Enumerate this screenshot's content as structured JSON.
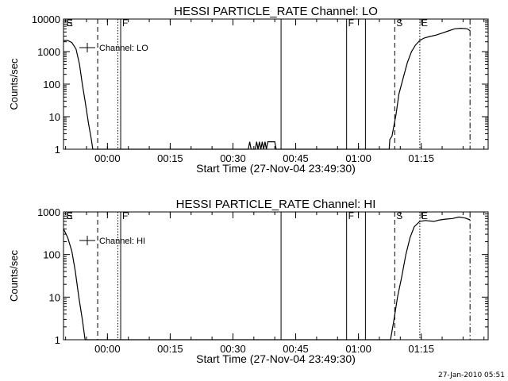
{
  "footer_timestamp": "27-Jan-2010 05:51",
  "chart_data": [
    {
      "type": "line",
      "title": "HESSI PARTICLE_RATE Channel: LO",
      "xlabel": "Start Time (27-Nov-04 23:49:30)",
      "ylabel": "Counts/sec",
      "y_scale": "log",
      "ylim": [
        1,
        10000
      ],
      "xlim": [
        "23:49:30",
        "01:31:00"
      ],
      "y_ticks": [
        {
          "v": 1,
          "label": "1"
        },
        {
          "v": 10,
          "label": "10"
        },
        {
          "v": 100,
          "label": "100"
        },
        {
          "v": 1000,
          "label": "1000"
        },
        {
          "v": 10000,
          "label": "10000"
        }
      ],
      "x_ticks": [
        {
          "t": "00:00",
          "label": "00:00"
        },
        {
          "t": "00:15",
          "label": "00:15"
        },
        {
          "t": "00:30",
          "label": "00:30"
        },
        {
          "t": "00:45",
          "label": "00:45"
        },
        {
          "t": "01:00",
          "label": "01:00"
        },
        {
          "t": "01:15",
          "label": "01:15"
        }
      ],
      "legend": {
        "entry": "Channel: LO",
        "placement": "top-left"
      },
      "markers": [
        {
          "t": "23:49:45",
          "style": "none",
          "label": "S"
        },
        {
          "t": "23:49:50",
          "style": "none",
          "label": "E"
        },
        {
          "t": "23:57:40",
          "style": "dashed",
          "label": ""
        },
        {
          "t": "00:02:30",
          "style": "dotted",
          "label": ""
        },
        {
          "t": "00:03:10",
          "style": "solid",
          "label": "F"
        },
        {
          "t": "00:41:30",
          "style": "solid",
          "label": ""
        },
        {
          "t": "00:57:10",
          "style": "solid",
          "label": "F"
        },
        {
          "t": "01:01:40",
          "style": "solid",
          "label": ""
        },
        {
          "t": "01:08:40",
          "style": "dashed",
          "label": "S"
        },
        {
          "t": "01:14:40",
          "style": "dotted",
          "label": "E"
        },
        {
          "t": "01:26:40",
          "style": "dashdot",
          "label": ""
        }
      ],
      "series": [
        {
          "points": [
            [
              "23:49:30",
              2200
            ],
            [
              "23:50:30",
              2200
            ],
            [
              "23:51:30",
              1900
            ],
            [
              "23:52:30",
              1200
            ],
            [
              "23:53:20",
              400
            ],
            [
              "23:54:00",
              100
            ],
            [
              "23:54:40",
              30
            ],
            [
              "23:55:30",
              6
            ],
            [
              "23:56:10",
              2
            ],
            [
              "23:56:30",
              1
            ],
            [
              "00:33:40",
              1
            ],
            [
              "00:34:00",
              1.7
            ],
            [
              "00:34:20",
              1
            ],
            [
              "00:35:20",
              1
            ],
            [
              "00:35:40",
              1.7
            ],
            [
              "00:36:00",
              1
            ],
            [
              "00:36:20",
              1.7
            ],
            [
              "00:36:40",
              1
            ],
            [
              "00:37:00",
              1.7
            ],
            [
              "00:37:20",
              1
            ],
            [
              "00:37:40",
              1.7
            ],
            [
              "00:38:00",
              1
            ],
            [
              "00:38:20",
              1.7
            ],
            [
              "00:40:00",
              1.7
            ],
            [
              "00:40:20",
              1
            ],
            [
              "01:07:20",
              1
            ],
            [
              "01:07:30",
              2
            ],
            [
              "01:08:00",
              2.5
            ],
            [
              "01:09:00",
              12
            ],
            [
              "01:09:40",
              50
            ],
            [
              "01:10:40",
              150
            ],
            [
              "01:11:40",
              450
            ],
            [
              "01:12:40",
              1000
            ],
            [
              "01:13:40",
              1600
            ],
            [
              "01:14:40",
              2200
            ],
            [
              "01:15:40",
              2600
            ],
            [
              "01:17:00",
              2900
            ],
            [
              "01:18:30",
              3200
            ],
            [
              "01:20:00",
              3700
            ],
            [
              "01:21:30",
              4300
            ],
            [
              "01:23:00",
              5000
            ],
            [
              "01:24:30",
              5200
            ],
            [
              "01:26:00",
              5000
            ],
            [
              "01:26:40",
              4400
            ]
          ]
        }
      ]
    },
    {
      "type": "line",
      "title": "HESSI PARTICLE_RATE Channel: HI",
      "xlabel": "Start Time (27-Nov-04 23:49:30)",
      "ylabel": "Counts/sec",
      "y_scale": "log",
      "ylim": [
        1,
        1000
      ],
      "xlim": [
        "23:49:30",
        "01:31:00"
      ],
      "y_ticks": [
        {
          "v": 1,
          "label": "1"
        },
        {
          "v": 10,
          "label": "10"
        },
        {
          "v": 100,
          "label": "100"
        },
        {
          "v": 1000,
          "label": "1000"
        }
      ],
      "x_ticks": [
        {
          "t": "00:00",
          "label": "00:00"
        },
        {
          "t": "00:15",
          "label": "00:15"
        },
        {
          "t": "00:30",
          "label": "00:30"
        },
        {
          "t": "00:45",
          "label": "00:45"
        },
        {
          "t": "01:00",
          "label": "01:00"
        },
        {
          "t": "01:15",
          "label": "01:15"
        }
      ],
      "legend": {
        "entry": "Channel: HI",
        "placement": "top-left"
      },
      "markers": [
        {
          "t": "23:49:45",
          "style": "none",
          "label": "S"
        },
        {
          "t": "23:49:50",
          "style": "none",
          "label": "E"
        },
        {
          "t": "23:57:40",
          "style": "dashed",
          "label": ""
        },
        {
          "t": "00:02:30",
          "style": "dotted",
          "label": ""
        },
        {
          "t": "00:03:10",
          "style": "solid",
          "label": "F"
        },
        {
          "t": "00:41:30",
          "style": "solid",
          "label": ""
        },
        {
          "t": "00:57:10",
          "style": "solid",
          "label": "F"
        },
        {
          "t": "01:01:40",
          "style": "solid",
          "label": ""
        },
        {
          "t": "01:08:40",
          "style": "dashed",
          "label": "S"
        },
        {
          "t": "01:14:40",
          "style": "dotted",
          "label": "E"
        },
        {
          "t": "01:26:40",
          "style": "dashdot",
          "label": ""
        }
      ],
      "series": [
        {
          "points": [
            [
              "23:49:30",
              400
            ],
            [
              "23:50:30",
              250
            ],
            [
              "23:51:30",
              120
            ],
            [
              "23:52:20",
              40
            ],
            [
              "23:53:10",
              10
            ],
            [
              "23:54:00",
              3
            ],
            [
              "23:54:40",
              1
            ],
            [
              "01:07:40",
              1
            ],
            [
              "01:08:30",
              3
            ],
            [
              "01:09:20",
              10
            ],
            [
              "01:10:20",
              30
            ],
            [
              "01:11:20",
              100
            ],
            [
              "01:12:20",
              250
            ],
            [
              "01:13:20",
              450
            ],
            [
              "01:14:40",
              600
            ],
            [
              "01:16:00",
              630
            ],
            [
              "01:18:00",
              600
            ],
            [
              "01:19:30",
              650
            ],
            [
              "01:21:00",
              680
            ],
            [
              "01:22:30",
              700
            ],
            [
              "01:24:00",
              760
            ],
            [
              "01:25:30",
              720
            ],
            [
              "01:26:40",
              650
            ]
          ]
        }
      ]
    }
  ]
}
